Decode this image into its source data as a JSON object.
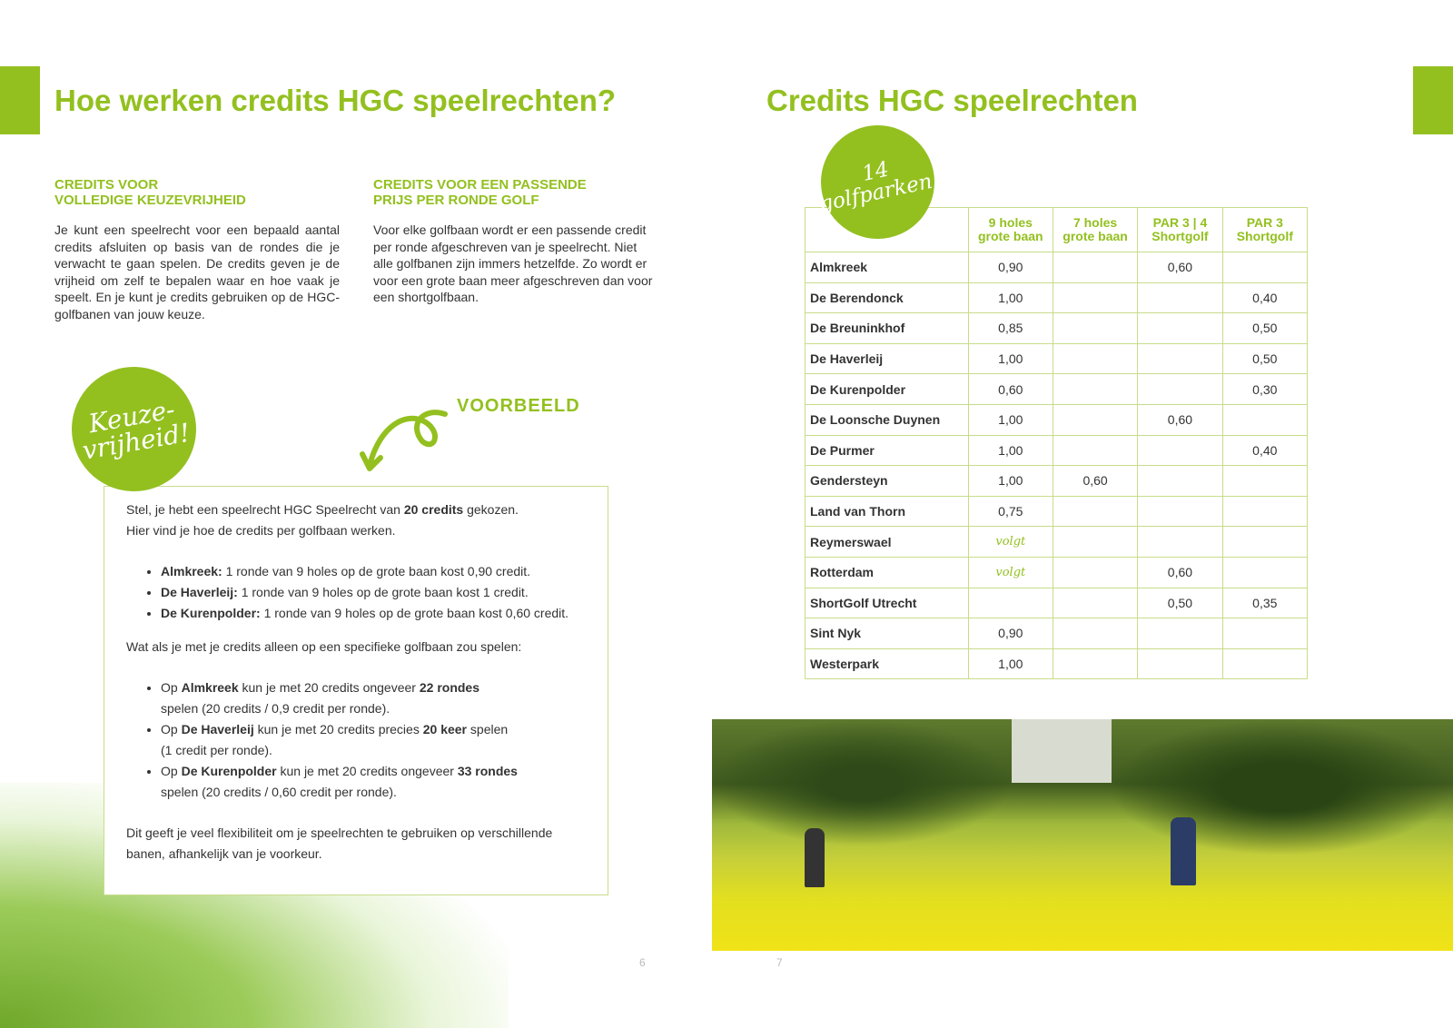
{
  "accent": "#93c01f",
  "left": {
    "title": "Hoe werken credits HGC speelrechten?",
    "col1": {
      "heading_line1": "CREDITS VOOR",
      "heading_line2": "VOLLEDIGE KEUZEVRIJHEID",
      "text": "Je kunt een speelrecht voor een bepaald aantal credits afsluiten op basis van de rondes die je verwacht te gaan spelen. De credits geven je de vrijheid om zelf te bepalen waar en hoe vaak je speelt. En je kunt je credits gebruiken op de HGC-golfbanen van jouw keuze."
    },
    "col2": {
      "heading_line1": "CREDITS VOOR EEN PASSENDE",
      "heading_line2": "PRIJS PER RONDE GOLF",
      "text": "Voor elke golfbaan wordt er een passende credit per ronde afgeschreven van je speelrecht. Niet alle golfbanen zijn immers hetzelfde. Zo wordt er voor een grote baan meer afgeschreven dan voor een shortgolfbaan."
    },
    "badge_line1": "Keuze-",
    "badge_line2": "vrijheid!",
    "example_label": "VOORBEELD",
    "example": {
      "intro_a": "Stel, je hebt een speelrecht HGC Speelrecht van ",
      "intro_b": "20 credits",
      "intro_c": " gekozen.",
      "intro2": "Hier vind je hoe de credits per golfbaan werken.",
      "list1": [
        {
          "b": "Almkreek:",
          "t": " 1 ronde van 9 holes op de grote baan kost 0,90 credit."
        },
        {
          "b": "De Haverleij:",
          "t": " 1 ronde van 9 holes op de grote baan kost 1 credit."
        },
        {
          "b": "De Kurenpolder:",
          "t": " 1 ronde van 9 holes op de grote baan kost 0,60 credit."
        }
      ],
      "question": "Wat als je met je credits alleen op een specifieke golfbaan zou spelen:",
      "list2": [
        {
          "a": "Op ",
          "b": "Almkreek",
          "c": " kun je met 20 credits ongeveer ",
          "d": "22 rondes",
          "e": " spelen (20 credits / 0,9 credit per ronde)."
        },
        {
          "a": "Op ",
          "b": "De Haverleij",
          "c": " kun je met 20 credits precies ",
          "d": "20 keer",
          "e": " spelen (1 credit per ronde)."
        },
        {
          "a": "Op ",
          "b": "De Kurenpolder",
          "c": " kun je met 20 credits ongeveer ",
          "d": "33 rondes",
          "e": " spelen (20 credits / 0,60 credit per ronde)."
        }
      ],
      "closing": "Dit geeft je veel flexibiliteit om je speelrechten te gebruiken op verschillende banen, afhankelijk van je voorkeur."
    },
    "page_number": "6"
  },
  "right": {
    "title": "Credits HGC speelrechten",
    "badge_line1": "14",
    "badge_line2": "golfparken!",
    "table": {
      "headers": [
        "",
        "9 holes\ngrote baan",
        "7 holes\ngrote baan",
        "PAR 3 | 4\nShortgolf",
        "PAR 3\nShortgolf"
      ],
      "rows": [
        [
          "Almkreek",
          "0,90",
          "",
          "0,60",
          ""
        ],
        [
          "De Berendonck",
          "1,00",
          "",
          "",
          "0,40"
        ],
        [
          "De Breuninkhof",
          "0,85",
          "",
          "",
          "0,50"
        ],
        [
          "De Haverleij",
          "1,00",
          "",
          "",
          "0,50"
        ],
        [
          "De Kurenpolder",
          "0,60",
          "",
          "",
          "0,30"
        ],
        [
          "De Loonsche Duynen",
          "1,00",
          "",
          "0,60",
          ""
        ],
        [
          "De Purmer",
          "1,00",
          "",
          "",
          "0,40"
        ],
        [
          "Gendersteyn",
          "1,00",
          "0,60",
          "",
          ""
        ],
        [
          "Land van Thorn",
          "0,75",
          "",
          "",
          ""
        ],
        [
          "Reymerswael",
          "volgt",
          "",
          "",
          ""
        ],
        [
          "Rotterdam",
          "volgt",
          "",
          "0,60",
          ""
        ],
        [
          "ShortGolf Utrecht",
          "",
          "",
          "0,50",
          "0,35"
        ],
        [
          "Sint Nyk",
          "0,90",
          "",
          "",
          ""
        ],
        [
          "Westerpark",
          "1,00",
          "",
          "",
          ""
        ]
      ]
    },
    "page_number": "7"
  }
}
